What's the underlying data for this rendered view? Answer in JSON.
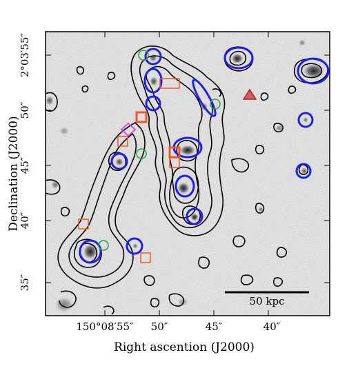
{
  "figure": {
    "xlabel": "Right ascention (J2000)",
    "ylabel": "Declination (J2000)",
    "x_ticks": [
      "150°08′55″",
      "50″",
      "45″",
      "40″"
    ],
    "y_ticks": [
      "2°03′55″",
      "50″",
      "45″",
      "40″",
      "35″"
    ],
    "scale_bar_label": "50 kpc",
    "colors": {
      "contour": "#000000",
      "blue_ellipse": "#1f1fe6",
      "green_circle": "#2e9e3e",
      "orange_square": "#e85a2a",
      "magenta_diamond": "#e040e0",
      "red_triangle": "#b02020"
    }
  }
}
